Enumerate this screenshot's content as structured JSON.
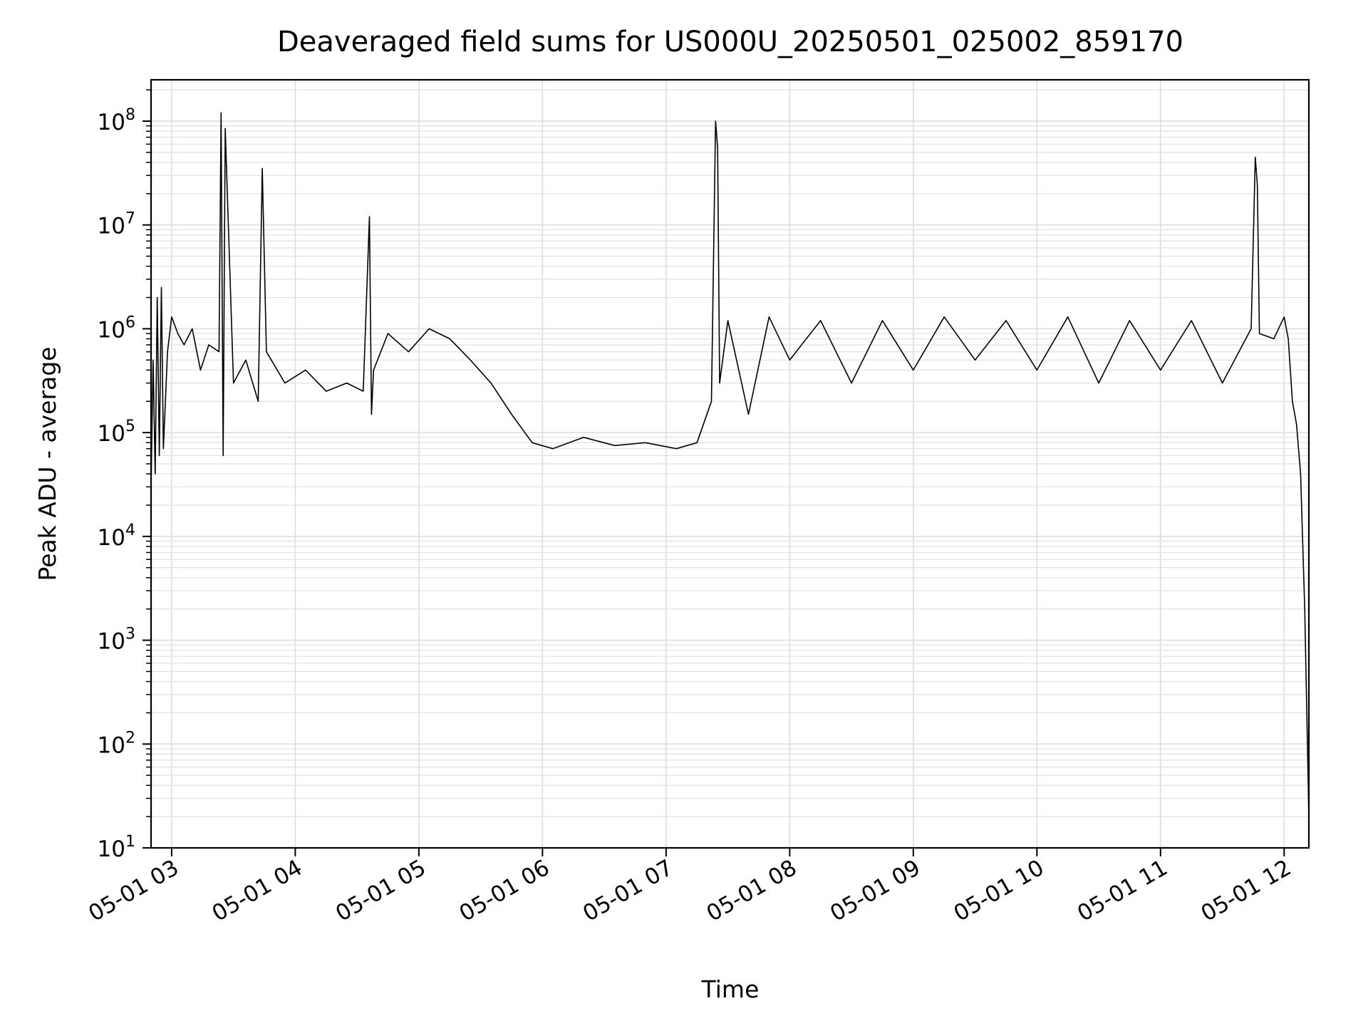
{
  "chart_data": {
    "type": "line",
    "title": "Deaveraged field sums for US000U_20250501_025002_859170",
    "xlabel": "Time",
    "ylabel": "Peak ADU - average",
    "xscale": "time",
    "yscale": "log",
    "xlim": [
      "2025-05-01 02:50",
      "2025-05-01 12:12"
    ],
    "ylim": [
      10,
      250000000
    ],
    "grid": true,
    "line_color": "#000000",
    "grid_color": "#e0e0e0",
    "x_ticks": [
      {
        "t": "2025-05-01 03:00",
        "label": "05-01 03"
      },
      {
        "t": "2025-05-01 04:00",
        "label": "05-01 04"
      },
      {
        "t": "2025-05-01 05:00",
        "label": "05-01 05"
      },
      {
        "t": "2025-05-01 06:00",
        "label": "05-01 06"
      },
      {
        "t": "2025-05-01 07:00",
        "label": "05-01 07"
      },
      {
        "t": "2025-05-01 08:00",
        "label": "05-01 08"
      },
      {
        "t": "2025-05-01 09:00",
        "label": "05-01 09"
      },
      {
        "t": "2025-05-01 10:00",
        "label": "05-01 10"
      },
      {
        "t": "2025-05-01 11:00",
        "label": "05-01 11"
      },
      {
        "t": "2025-05-01 12:00",
        "label": "05-01 12"
      }
    ],
    "y_ticks": [
      {
        "value": 10,
        "base": "10",
        "exp": "1"
      },
      {
        "value": 100,
        "base": "10",
        "exp": "2"
      },
      {
        "value": 1000,
        "base": "10",
        "exp": "3"
      },
      {
        "value": 10000,
        "base": "10",
        "exp": "4"
      },
      {
        "value": 100000,
        "base": "10",
        "exp": "5"
      },
      {
        "value": 1000000,
        "base": "10",
        "exp": "6"
      },
      {
        "value": 10000000,
        "base": "10",
        "exp": "7"
      },
      {
        "value": 100000000,
        "base": "10",
        "exp": "8"
      }
    ],
    "series": [
      {
        "x": [
          "2025-05-01 02:50",
          "2025-05-01 02:51",
          "2025-05-01 02:52",
          "2025-05-01 02:53",
          "2025-05-01 02:54",
          "2025-05-01 02:55",
          "2025-05-01 02:56",
          "2025-05-01 02:58",
          "2025-05-01 03:00",
          "2025-05-01 03:03",
          "2025-05-01 03:06",
          "2025-05-01 03:10",
          "2025-05-01 03:14",
          "2025-05-01 03:18",
          "2025-05-01 03:23",
          "2025-05-01 03:24",
          "2025-05-01 03:25",
          "2025-05-01 03:26",
          "2025-05-01 03:30",
          "2025-05-01 03:36",
          "2025-05-01 03:42",
          "2025-05-01 03:44",
          "2025-05-01 03:46",
          "2025-05-01 03:55",
          "2025-05-01 04:05",
          "2025-05-01 04:15",
          "2025-05-01 04:25",
          "2025-05-01 04:33",
          "2025-05-01 04:36",
          "2025-05-01 04:37",
          "2025-05-01 04:38",
          "2025-05-01 04:45",
          "2025-05-01 04:55",
          "2025-05-01 05:05",
          "2025-05-01 05:15",
          "2025-05-01 05:25",
          "2025-05-01 05:35",
          "2025-05-01 05:45",
          "2025-05-01 05:55",
          "2025-05-01 06:05",
          "2025-05-01 06:20",
          "2025-05-01 06:35",
          "2025-05-01 06:50",
          "2025-05-01 07:05",
          "2025-05-01 07:15",
          "2025-05-01 07:22",
          "2025-05-01 07:24",
          "2025-05-01 07:25",
          "2025-05-01 07:26",
          "2025-05-01 07:30",
          "2025-05-01 07:40",
          "2025-05-01 07:50",
          "2025-05-01 08:00",
          "2025-05-01 08:15",
          "2025-05-01 08:30",
          "2025-05-01 08:45",
          "2025-05-01 09:00",
          "2025-05-01 09:15",
          "2025-05-01 09:30",
          "2025-05-01 09:45",
          "2025-05-01 10:00",
          "2025-05-01 10:15",
          "2025-05-01 10:30",
          "2025-05-01 10:45",
          "2025-05-01 11:00",
          "2025-05-01 11:15",
          "2025-05-01 11:30",
          "2025-05-01 11:44",
          "2025-05-01 11:46",
          "2025-05-01 11:47",
          "2025-05-01 11:48",
          "2025-05-01 11:55",
          "2025-05-01 12:00",
          "2025-05-01 12:02",
          "2025-05-01 12:04",
          "2025-05-01 12:06",
          "2025-05-01 12:08",
          "2025-05-01 12:10",
          "2025-05-01 12:11",
          "2025-05-01 12:12"
        ],
        "y": [
          30000,
          500000,
          40000,
          2000000,
          60000,
          2500000,
          70000,
          600000,
          1300000,
          900000,
          700000,
          1000000,
          400000,
          700000,
          600000,
          120000000,
          60000,
          85000000,
          300000,
          500000,
          200000,
          35000000,
          600000,
          300000,
          400000,
          250000,
          300000,
          250000,
          12000000,
          150000,
          400000,
          900000,
          600000,
          1000000,
          800000,
          500000,
          300000,
          150000,
          80000,
          70000,
          90000,
          75000,
          80000,
          70000,
          80000,
          200000,
          100000000,
          55000000,
          300000,
          1200000,
          150000,
          1300000,
          500000,
          1200000,
          300000,
          1200000,
          400000,
          1300000,
          500000,
          1200000,
          400000,
          1300000,
          300000,
          1200000,
          400000,
          1200000,
          300000,
          1000000,
          45000000,
          24000000,
          900000,
          800000,
          1300000,
          800000,
          200000,
          120000,
          40000,
          2000,
          200,
          20
        ]
      }
    ]
  }
}
